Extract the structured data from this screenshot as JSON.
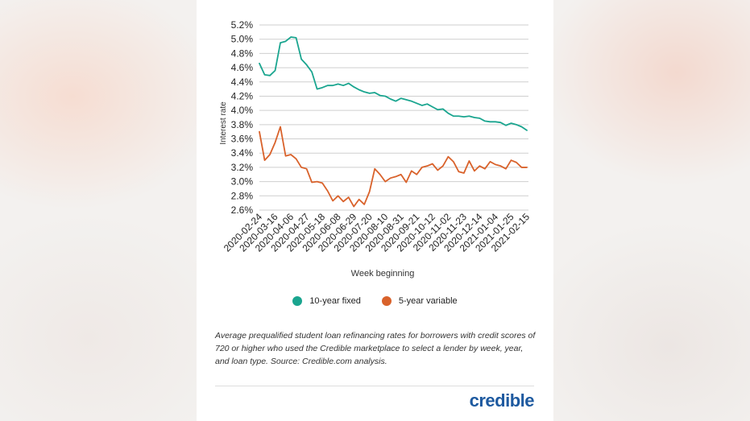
{
  "chart_data": {
    "type": "line",
    "title": "",
    "xlabel": "Week beginning",
    "ylabel": "Interest rate",
    "ylim": [
      2.6,
      5.2
    ],
    "y_ticks": [
      "5.2%",
      "5.0%",
      "4.8%",
      "4.6%",
      "4.4%",
      "4.2%",
      "4.0%",
      "3.8%",
      "3.6%",
      "3.4%",
      "3.2%",
      "3.0%",
      "2.8%",
      "2.6%"
    ],
    "x_tick_labels": [
      "2020-02-24",
      "2020-03-16",
      "2020-04-06",
      "2020-04-27",
      "2020-05-18",
      "2020-06-08",
      "2020-06-29",
      "2020-07-20",
      "2020-08-10",
      "2020-08-31",
      "2020-09-21",
      "2020-10-12",
      "2020-11-02",
      "2020-11-23",
      "2020-12-14",
      "2021-01-04",
      "2021-01-25",
      "2021-02-15"
    ],
    "grid": true,
    "legend_position": "bottom",
    "x_weeks": [
      "2020-02-24",
      "2020-03-02",
      "2020-03-09",
      "2020-03-16",
      "2020-03-23",
      "2020-03-30",
      "2020-04-06",
      "2020-04-13",
      "2020-04-20",
      "2020-04-27",
      "2020-05-04",
      "2020-05-11",
      "2020-05-18",
      "2020-05-25",
      "2020-06-01",
      "2020-06-08",
      "2020-06-15",
      "2020-06-22",
      "2020-06-29",
      "2020-07-06",
      "2020-07-13",
      "2020-07-20",
      "2020-07-27",
      "2020-08-03",
      "2020-08-10",
      "2020-08-17",
      "2020-08-24",
      "2020-08-31",
      "2020-09-07",
      "2020-09-14",
      "2020-09-21",
      "2020-09-28",
      "2020-10-05",
      "2020-10-12",
      "2020-10-19",
      "2020-10-26",
      "2020-11-02",
      "2020-11-09",
      "2020-11-16",
      "2020-11-23",
      "2020-11-30",
      "2020-12-07",
      "2020-12-14",
      "2020-12-21",
      "2020-12-28",
      "2021-01-04",
      "2021-01-11",
      "2021-01-18",
      "2021-01-25",
      "2021-02-01",
      "2021-02-08",
      "2021-02-15"
    ],
    "series": [
      {
        "name": "10-year fixed",
        "color": "#1aa58f",
        "values": [
          4.66,
          4.5,
          4.49,
          4.56,
          4.95,
          4.97,
          5.03,
          5.02,
          4.72,
          4.64,
          4.54,
          4.3,
          4.32,
          4.35,
          4.35,
          4.37,
          4.35,
          4.38,
          4.33,
          4.29,
          4.26,
          4.24,
          4.25,
          4.21,
          4.2,
          4.16,
          4.13,
          4.17,
          4.15,
          4.13,
          4.1,
          4.07,
          4.09,
          4.05,
          4.01,
          4.02,
          3.96,
          3.92,
          3.92,
          3.91,
          3.92,
          3.9,
          3.89,
          3.85,
          3.84,
          3.84,
          3.83,
          3.79,
          3.82,
          3.8,
          3.77,
          3.72
        ]
      },
      {
        "name": "5-year variable",
        "color": "#d9622b",
        "values": [
          3.7,
          3.3,
          3.38,
          3.55,
          3.77,
          3.36,
          3.38,
          3.32,
          3.2,
          3.18,
          2.99,
          3.0,
          2.98,
          2.87,
          2.73,
          2.8,
          2.72,
          2.78,
          2.65,
          2.75,
          2.68,
          2.86,
          3.18,
          3.1,
          3.0,
          3.05,
          3.07,
          3.1,
          2.99,
          3.15,
          3.1,
          3.2,
          3.22,
          3.25,
          3.16,
          3.22,
          3.35,
          3.28,
          3.14,
          3.12,
          3.29,
          3.15,
          3.22,
          3.18,
          3.28,
          3.24,
          3.22,
          3.18,
          3.3,
          3.27,
          3.2,
          3.2
        ]
      }
    ]
  },
  "legend": {
    "fixed_label": "10-year fixed",
    "variable_label": "5-year variable"
  },
  "caption": "Average prequalified student loan refinancing rates for borrowers with credit scores of 720 or higher who used the Credible marketplace to select a lender by week, year, and loan type. Source: Credible.com analysis.",
  "logo": "credible"
}
